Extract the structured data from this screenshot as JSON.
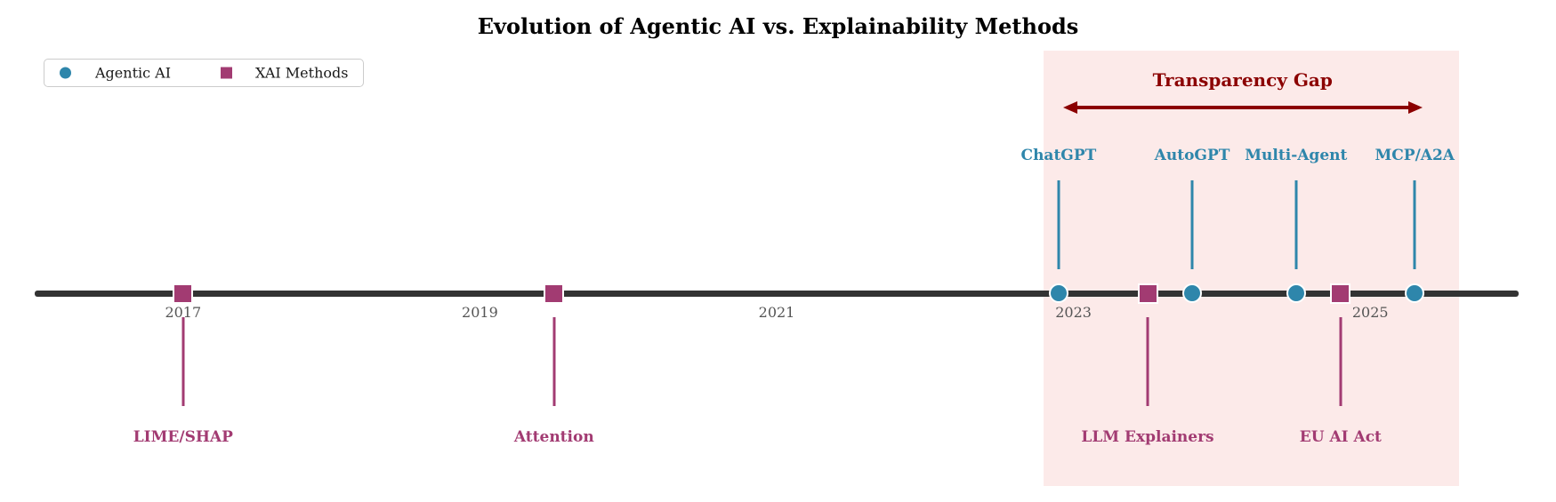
{
  "title": "Evolution of Agentic AI vs. Explainability Methods",
  "legend": {
    "items": [
      {
        "label": "Agentic AI",
        "marker": "circle",
        "color": "#2E86AB"
      },
      {
        "label": "XAI Methods",
        "marker": "square",
        "color": "#A23B72"
      }
    ]
  },
  "colors": {
    "agentic_ai": "#2E86AB",
    "xai_methods": "#A23B72",
    "gap_accent": "#8B0000",
    "gap_fill": "#FCEAE9",
    "timeline": "#333333",
    "tick_label": "#555555"
  },
  "chart_data": {
    "type": "timeline",
    "title": "Evolution of Agentic AI vs. Explainability Methods",
    "x_range": [
      2016,
      2026
    ],
    "ticks": [
      "2017",
      "2019",
      "2021",
      "2023",
      "2025"
    ],
    "tick_years": [
      2017,
      2019,
      2021,
      2023,
      2025
    ],
    "grid": false,
    "legend_position": "upper-left",
    "series": [
      {
        "name": "Agentic AI",
        "marker": "circle",
        "color": "#2E86AB",
        "label_side": "above",
        "events": [
          {
            "label": "ChatGPT",
            "year": 2022.9
          },
          {
            "label": "AutoGPT",
            "year": 2023.8
          },
          {
            "label": "Multi-Agent",
            "year": 2024.5
          },
          {
            "label": "MCP/A2A",
            "year": 2025.3
          }
        ]
      },
      {
        "name": "XAI Methods",
        "marker": "square",
        "color": "#A23B72",
        "label_side": "below",
        "events": [
          {
            "label": "LIME/SHAP",
            "year": 2017.0
          },
          {
            "label": "Attention",
            "year": 2019.5
          },
          {
            "label": "LLM Explainers",
            "year": 2023.5
          },
          {
            "label": "EU AI Act",
            "year": 2024.8
          }
        ]
      }
    ],
    "annotation": {
      "label": "Transparency Gap",
      "span_years": [
        2022.8,
        2025.6
      ],
      "arrow_years": [
        2022.93,
        2025.35
      ]
    }
  }
}
